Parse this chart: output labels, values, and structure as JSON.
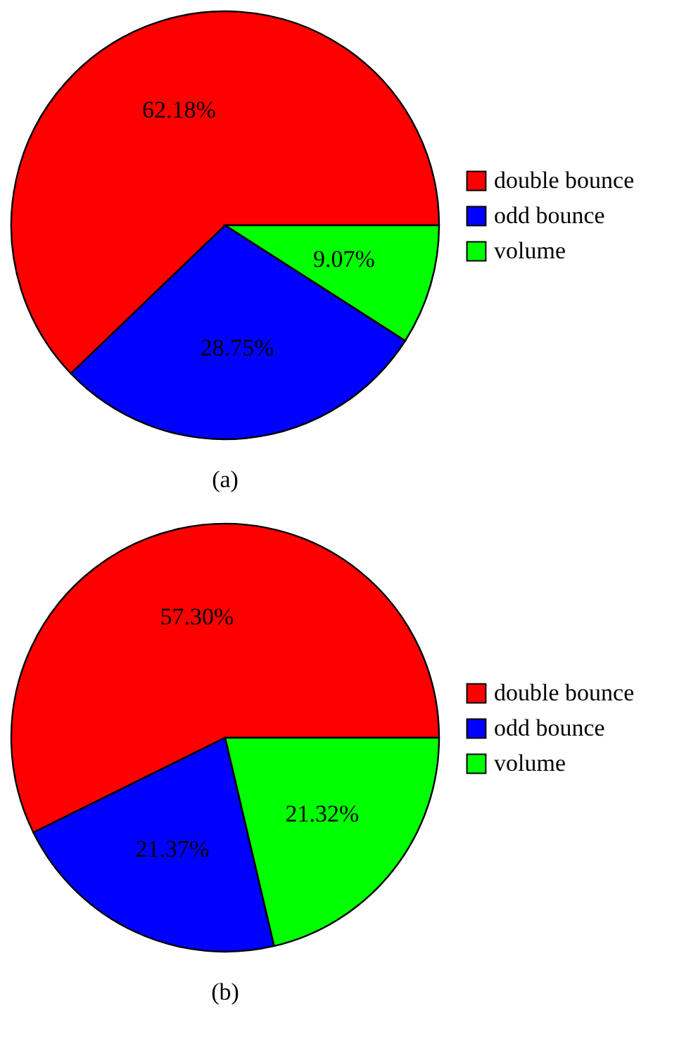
{
  "chart_data": [
    {
      "type": "pie",
      "title": "(a)",
      "categories": [
        "double bounce",
        "odd bounce",
        "volume"
      ],
      "values": [
        62.18,
        28.75,
        9.07
      ],
      "colors": [
        "#ff0000",
        "#0000ff",
        "#00ff00"
      ],
      "value_labels": [
        "62.18%",
        "28.75%",
        "9.07%"
      ],
      "legend": "right"
    },
    {
      "type": "pie",
      "title": "(b)",
      "categories": [
        "double bounce",
        "odd bounce",
        "volume"
      ],
      "values": [
        57.3,
        21.37,
        21.32
      ],
      "colors": [
        "#ff0000",
        "#0000ff",
        "#00ff00"
      ],
      "value_labels": [
        "57.30%",
        "21.37%",
        "21.32%"
      ],
      "legend": "right"
    }
  ]
}
